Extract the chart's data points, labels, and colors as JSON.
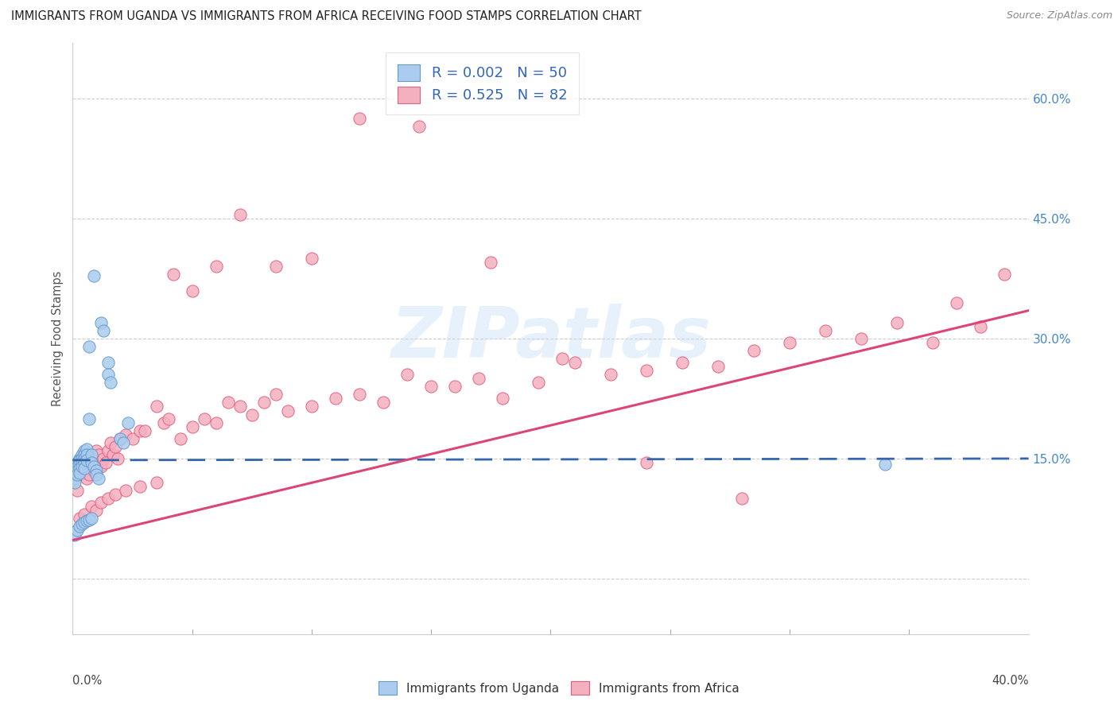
{
  "title": "IMMIGRANTS FROM UGANDA VS IMMIGRANTS FROM AFRICA RECEIVING FOOD STAMPS CORRELATION CHART",
  "source": "Source: ZipAtlas.com",
  "ylabel": "Receiving Food Stamps",
  "right_ytick_vals": [
    0.0,
    0.15,
    0.3,
    0.45,
    0.6
  ],
  "right_ytick_labels": [
    "",
    "15.0%",
    "30.0%",
    "45.0%",
    "60.0%"
  ],
  "xmin": 0.0,
  "xmax": 0.4,
  "ymin": -0.07,
  "ymax": 0.67,
  "uganda_color": "#aaccee",
  "africa_color": "#f5b0c0",
  "uganda_edge_color": "#6699cc",
  "africa_edge_color": "#e06080",
  "uganda_line_color": "#3366aa",
  "africa_line_color": "#dd4477",
  "legend_uganda_label": "R = 0.002   N = 50",
  "legend_africa_label": "R = 0.525   N = 82",
  "legend_bottom_uganda": "Immigrants from Uganda",
  "legend_bottom_africa": "Immigrants from Africa",
  "watermark": "ZIPatlas",
  "uganda_R": 0.002,
  "africa_R": 0.525,
  "uganda_scatter_x": [
    0.001,
    0.001,
    0.001,
    0.002,
    0.002,
    0.002,
    0.002,
    0.003,
    0.003,
    0.003,
    0.003,
    0.003,
    0.004,
    0.004,
    0.004,
    0.004,
    0.005,
    0.005,
    0.005,
    0.005,
    0.005,
    0.006,
    0.006,
    0.006,
    0.007,
    0.007,
    0.008,
    0.008,
    0.009,
    0.01,
    0.01,
    0.011,
    0.012,
    0.013,
    0.015,
    0.015,
    0.016,
    0.02,
    0.021,
    0.023,
    0.001,
    0.002,
    0.003,
    0.004,
    0.005,
    0.006,
    0.007,
    0.008,
    0.34,
    0.009
  ],
  "uganda_scatter_y": [
    0.13,
    0.125,
    0.12,
    0.145,
    0.14,
    0.135,
    0.13,
    0.15,
    0.148,
    0.143,
    0.138,
    0.132,
    0.155,
    0.15,
    0.145,
    0.14,
    0.16,
    0.155,
    0.15,
    0.145,
    0.138,
    0.162,
    0.155,
    0.148,
    0.2,
    0.29,
    0.155,
    0.145,
    0.14,
    0.135,
    0.13,
    0.125,
    0.32,
    0.31,
    0.27,
    0.255,
    0.245,
    0.175,
    0.17,
    0.195,
    0.055,
    0.06,
    0.065,
    0.068,
    0.07,
    0.072,
    0.073,
    0.075,
    0.143,
    0.378
  ],
  "africa_scatter_x": [
    0.002,
    0.003,
    0.004,
    0.005,
    0.006,
    0.007,
    0.008,
    0.009,
    0.01,
    0.011,
    0.012,
    0.013,
    0.014,
    0.015,
    0.016,
    0.017,
    0.018,
    0.019,
    0.02,
    0.022,
    0.025,
    0.028,
    0.03,
    0.035,
    0.038,
    0.04,
    0.045,
    0.05,
    0.055,
    0.06,
    0.065,
    0.07,
    0.075,
    0.08,
    0.085,
    0.09,
    0.1,
    0.11,
    0.12,
    0.13,
    0.14,
    0.15,
    0.16,
    0.17,
    0.18,
    0.195,
    0.21,
    0.225,
    0.24,
    0.255,
    0.27,
    0.285,
    0.3,
    0.315,
    0.33,
    0.345,
    0.36,
    0.37,
    0.38,
    0.39,
    0.003,
    0.005,
    0.008,
    0.01,
    0.012,
    0.015,
    0.018,
    0.022,
    0.028,
    0.035,
    0.042,
    0.05,
    0.06,
    0.07,
    0.085,
    0.1,
    0.12,
    0.145,
    0.175,
    0.205,
    0.24,
    0.28
  ],
  "africa_scatter_y": [
    0.11,
    0.13,
    0.14,
    0.135,
    0.125,
    0.13,
    0.145,
    0.135,
    0.16,
    0.155,
    0.14,
    0.15,
    0.145,
    0.16,
    0.17,
    0.155,
    0.165,
    0.15,
    0.175,
    0.18,
    0.175,
    0.185,
    0.185,
    0.215,
    0.195,
    0.2,
    0.175,
    0.19,
    0.2,
    0.195,
    0.22,
    0.215,
    0.205,
    0.22,
    0.23,
    0.21,
    0.215,
    0.225,
    0.23,
    0.22,
    0.255,
    0.24,
    0.24,
    0.25,
    0.225,
    0.245,
    0.27,
    0.255,
    0.26,
    0.27,
    0.265,
    0.285,
    0.295,
    0.31,
    0.3,
    0.32,
    0.295,
    0.345,
    0.315,
    0.38,
    0.075,
    0.08,
    0.09,
    0.085,
    0.095,
    0.1,
    0.105,
    0.11,
    0.115,
    0.12,
    0.38,
    0.36,
    0.39,
    0.455,
    0.39,
    0.4,
    0.575,
    0.565,
    0.395,
    0.275,
    0.145,
    0.1
  ],
  "uganda_line_y_at_0": 0.148,
  "uganda_line_y_at_40": 0.15,
  "africa_line_y_at_0": 0.048,
  "africa_line_y_at_40": 0.335
}
